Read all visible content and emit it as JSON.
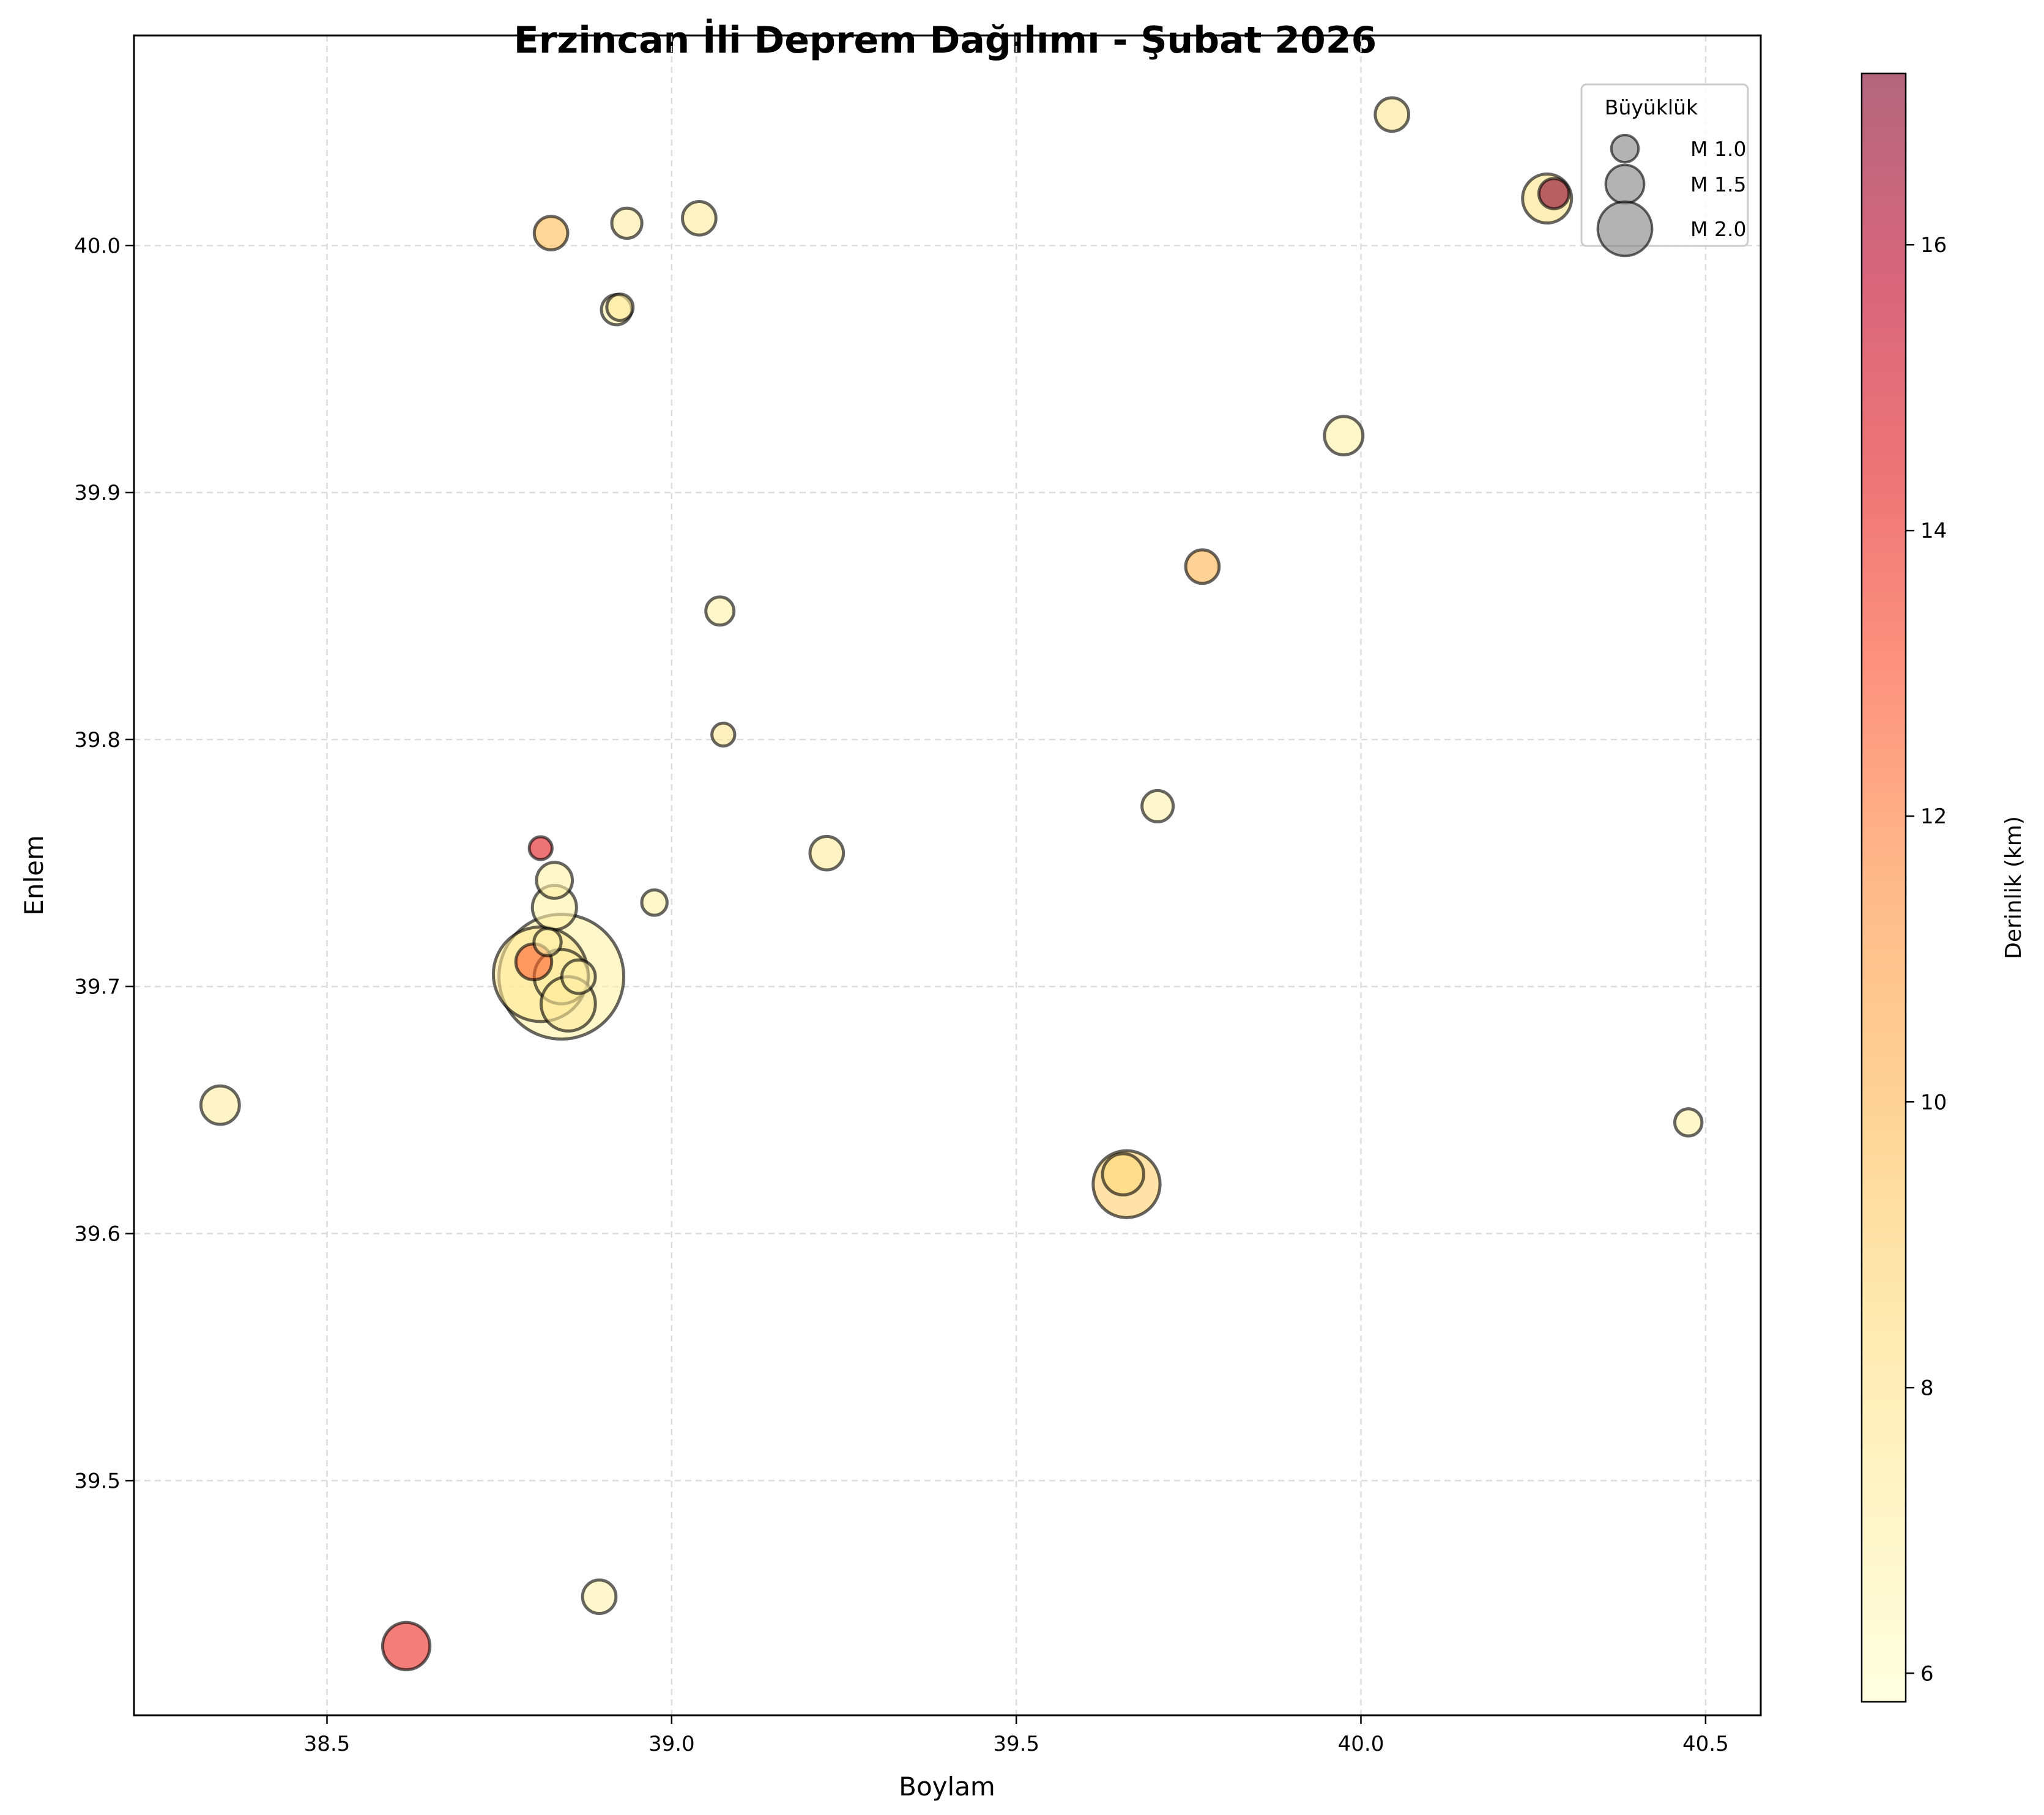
{
  "chart_data": {
    "type": "scatter",
    "title": "Erzincan İli Deprem Dağılımı - Şubat 2026",
    "xlabel": "Boylam",
    "ylabel": "Enlem",
    "xlim": [
      38.22,
      40.58
    ],
    "ylim": [
      39.405,
      40.085
    ],
    "xticks": [
      38.5,
      39.0,
      39.5,
      40.0,
      40.5
    ],
    "xtick_labels": [
      "38.5",
      "39.0",
      "39.5",
      "40.0",
      "40.5"
    ],
    "yticks": [
      39.5,
      39.6,
      39.7,
      39.8,
      39.9,
      40.0
    ],
    "ytick_labels": [
      "39.5",
      "39.6",
      "39.7",
      "39.8",
      "39.9",
      "40.0"
    ],
    "grid": true,
    "grid_style": "dashed",
    "colorbar": {
      "label": "Derinlik (km)",
      "range": [
        5.8,
        17.2
      ],
      "ticks": [
        6,
        8,
        10,
        12,
        14,
        16
      ],
      "tick_labels": [
        "6",
        "8",
        "10",
        "12",
        "14",
        "16"
      ],
      "colormap": "YlOrRd",
      "stops": [
        "#ffffcc",
        "#ffeda0",
        "#fed976",
        "#feb24c",
        "#fd8d3c",
        "#fc4e2a",
        "#e31a1c",
        "#bd0026",
        "#800026"
      ],
      "alpha": 0.6
    },
    "legend": {
      "title": "Büyüklük",
      "location": "upper right",
      "entries": [
        {
          "label": "M 1.0",
          "magnitude": 1.0
        },
        {
          "label": "M 1.5",
          "magnitude": 1.5
        },
        {
          "label": "M 2.0",
          "magnitude": 2.0
        }
      ]
    },
    "points": [
      {
        "lon": 38.84,
        "lat": 39.704,
        "mag": 3.2,
        "depth": 7.0
      },
      {
        "lon": 38.81,
        "lat": 39.705,
        "mag": 2.8,
        "depth": 7.6
      },
      {
        "lon": 39.66,
        "lat": 39.62,
        "mag": 2.3,
        "depth": 9.0
      },
      {
        "lon": 38.84,
        "lat": 39.704,
        "mag": 2.0,
        "depth": 7.2
      },
      {
        "lon": 38.85,
        "lat": 39.693,
        "mag": 2.0,
        "depth": 7.4
      },
      {
        "lon": 38.83,
        "lat": 39.732,
        "mag": 1.7,
        "depth": 7.0
      },
      {
        "lon": 40.27,
        "lat": 40.019,
        "mag": 1.85,
        "depth": 8.0
      },
      {
        "lon": 38.615,
        "lat": 39.433,
        "mag": 1.8,
        "depth": 14.0
      },
      {
        "lon": 39.655,
        "lat": 39.624,
        "mag": 1.6,
        "depth": 8.5
      },
      {
        "lon": 39.975,
        "lat": 39.923,
        "mag": 1.5,
        "depth": 7.0
      },
      {
        "lon": 38.345,
        "lat": 39.652,
        "mag": 1.5,
        "depth": 7.2
      },
      {
        "lon": 38.83,
        "lat": 39.743,
        "mag": 1.4,
        "depth": 7.0
      },
      {
        "lon": 38.8,
        "lat": 39.71,
        "mag": 1.4,
        "depth": 12.5
      },
      {
        "lon": 38.865,
        "lat": 39.704,
        "mag": 1.3,
        "depth": 7.0
      },
      {
        "lon": 39.04,
        "lat": 40.011,
        "mag": 1.3,
        "depth": 7.4
      },
      {
        "lon": 39.225,
        "lat": 39.754,
        "mag": 1.3,
        "depth": 7.4
      },
      {
        "lon": 40.045,
        "lat": 40.053,
        "mag": 1.3,
        "depth": 7.6
      },
      {
        "lon": 38.825,
        "lat": 40.005,
        "mag": 1.3,
        "depth": 9.8
      },
      {
        "lon": 38.895,
        "lat": 39.453,
        "mag": 1.3,
        "depth": 6.8
      },
      {
        "lon": 39.77,
        "lat": 39.87,
        "mag": 1.3,
        "depth": 10.0
      },
      {
        "lon": 39.705,
        "lat": 39.773,
        "mag": 1.2,
        "depth": 6.8
      },
      {
        "lon": 38.935,
        "lat": 40.009,
        "mag": 1.15,
        "depth": 7.2
      },
      {
        "lon": 38.92,
        "lat": 39.974,
        "mag": 1.15,
        "depth": 7.0
      },
      {
        "lon": 40.28,
        "lat": 40.021,
        "mag": 1.15,
        "depth": 17.0
      },
      {
        "lon": 39.07,
        "lat": 39.852,
        "mag": 1.05,
        "depth": 7.0
      },
      {
        "lon": 38.82,
        "lat": 39.718,
        "mag": 1.0,
        "depth": 7.0
      },
      {
        "lon": 40.475,
        "lat": 39.645,
        "mag": 1.0,
        "depth": 7.0
      },
      {
        "lon": 38.925,
        "lat": 39.975,
        "mag": 0.95,
        "depth": 7.4
      },
      {
        "lon": 38.975,
        "lat": 39.734,
        "mag": 0.9,
        "depth": 7.0
      },
      {
        "lon": 39.075,
        "lat": 39.802,
        "mag": 0.75,
        "depth": 7.6
      },
      {
        "lon": 38.81,
        "lat": 39.756,
        "mag": 0.75,
        "depth": 14.5
      }
    ]
  }
}
